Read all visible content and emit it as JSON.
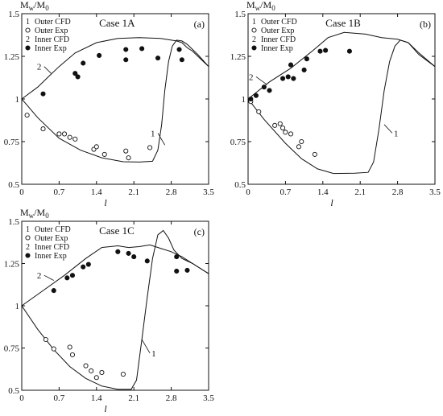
{
  "chart_data": [
    {
      "type": "line",
      "title": "Case 1A",
      "panel_tag": "(a)",
      "ylabel": "Mw/M0",
      "xlabel": "l",
      "xlim": [
        0,
        3.5
      ],
      "ylim": [
        0.5,
        1.5
      ],
      "xticks": [
        "0",
        "0.7",
        "1.4",
        "2.1",
        "2.8",
        "3.5"
      ],
      "yticks": [
        "0.5",
        "0.75",
        "1",
        "1.25",
        "1.5"
      ],
      "legend": [
        "Outer  CFD",
        "Outer  Exp",
        "Inner  CFD",
        "Inner  Exp"
      ],
      "legend_nums": [
        "1",
        "2"
      ],
      "curve_labels": [
        "1",
        "2"
      ],
      "series": [
        {
          "name": "Outer CFD",
          "kind": "line",
          "x": [
            0,
            0.3,
            0.7,
            1.1,
            1.5,
            1.9,
            2.2,
            2.45,
            2.55,
            2.62,
            2.68,
            2.75,
            2.82,
            2.9,
            3.0,
            3.1,
            3.2,
            3.3,
            3.5
          ],
          "y": [
            1.0,
            0.89,
            0.77,
            0.7,
            0.655,
            0.632,
            0.63,
            0.635,
            0.7,
            0.85,
            1.05,
            1.22,
            1.31,
            1.345,
            1.34,
            1.32,
            1.29,
            1.26,
            1.19
          ]
        },
        {
          "name": "Outer Exp",
          "kind": "open",
          "x": [
            0.1,
            0.4,
            0.7,
            0.8,
            0.9,
            1.0,
            1.35,
            1.4,
            1.55,
            1.95,
            2.0,
            2.4
          ],
          "y": [
            0.905,
            0.825,
            0.795,
            0.795,
            0.775,
            0.765,
            0.705,
            0.72,
            0.675,
            0.695,
            0.655,
            0.715
          ]
        },
        {
          "name": "Inner CFD",
          "kind": "line",
          "x": [
            0,
            0.3,
            0.5,
            0.7,
            1.0,
            1.4,
            1.8,
            2.2,
            2.6,
            2.9,
            3.0,
            3.1,
            3.2,
            3.3,
            3.5
          ],
          "y": [
            1.0,
            1.07,
            1.13,
            1.19,
            1.27,
            1.33,
            1.355,
            1.36,
            1.355,
            1.34,
            1.33,
            1.3,
            1.28,
            1.25,
            1.19
          ]
        },
        {
          "name": "Inner Exp",
          "kind": "filled",
          "x": [
            0.4,
            1.0,
            1.05,
            1.15,
            1.45,
            1.95,
            1.95,
            2.25,
            2.55,
            2.95,
            3.0
          ],
          "y": [
            1.03,
            1.15,
            1.13,
            1.21,
            1.255,
            1.29,
            1.23,
            1.295,
            1.24,
            1.29,
            1.23
          ]
        }
      ]
    },
    {
      "type": "line",
      "title": "Case 1B",
      "panel_tag": "(b)",
      "ylabel": "Mw/M0",
      "xlabel": "l",
      "xlim": [
        0,
        3.5
      ],
      "ylim": [
        0.5,
        1.5
      ],
      "xticks": [
        "0",
        "0.7",
        "1.4",
        "2.1",
        "2.8",
        "3.5"
      ],
      "yticks": [
        "0.5",
        "0.75",
        "1",
        "1.25",
        "1.5"
      ],
      "legend": [
        "Outer  CFD",
        "Outer  Exp",
        "Inner  CFD",
        "Inner  Exp"
      ],
      "legend_nums": [
        "1",
        "2"
      ],
      "curve_labels": [
        "1",
        "2"
      ],
      "series": [
        {
          "name": "Outer CFD",
          "kind": "line",
          "x": [
            0,
            0.3,
            0.7,
            1.0,
            1.3,
            1.6,
            2.0,
            2.25,
            2.35,
            2.45,
            2.55,
            2.65,
            2.75,
            2.85,
            3.0,
            3.2,
            3.5
          ],
          "y": [
            1.0,
            0.88,
            0.74,
            0.65,
            0.59,
            0.563,
            0.565,
            0.57,
            0.63,
            0.82,
            1.05,
            1.22,
            1.31,
            1.345,
            1.33,
            1.26,
            1.19
          ]
        },
        {
          "name": "Outer Exp",
          "kind": "open",
          "x": [
            0.05,
            0.2,
            0.5,
            0.6,
            0.65,
            0.7,
            0.8,
            0.95,
            1.0,
            1.25
          ],
          "y": [
            0.985,
            0.925,
            0.845,
            0.855,
            0.83,
            0.805,
            0.795,
            0.72,
            0.75,
            0.675
          ]
        },
        {
          "name": "Inner CFD",
          "kind": "line",
          "x": [
            0,
            0.4,
            0.8,
            1.2,
            1.5,
            1.8,
            2.2,
            2.5,
            2.8,
            3.0,
            3.2,
            3.5
          ],
          "y": [
            1.0,
            1.1,
            1.18,
            1.28,
            1.36,
            1.39,
            1.38,
            1.36,
            1.35,
            1.33,
            1.27,
            1.19
          ]
        },
        {
          "name": "Inner Exp",
          "kind": "filled",
          "x": [
            0.05,
            0.15,
            0.3,
            0.4,
            0.65,
            0.75,
            0.85,
            0.8,
            1.05,
            1.1,
            1.35,
            1.45,
            1.9
          ],
          "y": [
            1.0,
            1.02,
            1.07,
            1.05,
            1.12,
            1.13,
            1.12,
            1.2,
            1.17,
            1.235,
            1.28,
            1.285,
            1.28
          ]
        }
      ]
    },
    {
      "type": "line",
      "title": "Case 1C",
      "panel_tag": "(c)",
      "ylabel": "Mw/M0",
      "xlabel": "l",
      "xlim": [
        0,
        3.5
      ],
      "ylim": [
        0.5,
        1.5
      ],
      "xticks": [
        "0",
        "0.7",
        "1.4",
        "2.1",
        "2.8",
        "3.5"
      ],
      "yticks": [
        "0.5",
        "0.75",
        "1",
        "1.25",
        "1.5"
      ],
      "legend": [
        "Outer  CFD",
        "Outer  Exp",
        "Inner  CFD",
        "Inner  Exp"
      ],
      "legend_nums": [
        "1",
        "2"
      ],
      "curve_labels": [
        "1",
        "2"
      ],
      "series": [
        {
          "name": "Outer CFD",
          "kind": "line",
          "x": [
            0,
            0.3,
            0.6,
            0.9,
            1.2,
            1.5,
            1.8,
            2.05,
            2.15,
            2.25,
            2.35,
            2.45,
            2.55,
            2.65,
            2.75,
            2.85,
            3.0,
            3.2,
            3.5
          ],
          "y": [
            1.0,
            0.86,
            0.74,
            0.64,
            0.57,
            0.525,
            0.505,
            0.505,
            0.56,
            0.8,
            1.05,
            1.28,
            1.42,
            1.445,
            1.4,
            1.33,
            1.28,
            1.25,
            1.19
          ]
        },
        {
          "name": "Outer Exp",
          "kind": "open",
          "x": [
            0.45,
            0.6,
            0.9,
            0.95,
            1.2,
            1.3,
            1.4,
            1.5,
            1.9
          ],
          "y": [
            0.8,
            0.745,
            0.755,
            0.71,
            0.645,
            0.615,
            0.575,
            0.605,
            0.595
          ]
        },
        {
          "name": "Inner CFD",
          "kind": "line",
          "x": [
            0,
            0.4,
            0.8,
            1.2,
            1.5,
            1.8,
            2.0,
            2.2,
            2.4,
            2.6,
            2.8,
            3.0,
            3.2,
            3.5
          ],
          "y": [
            1.0,
            1.09,
            1.18,
            1.28,
            1.345,
            1.355,
            1.345,
            1.35,
            1.36,
            1.34,
            1.32,
            1.29,
            1.25,
            1.19
          ]
        },
        {
          "name": "Inner Exp",
          "kind": "filled",
          "x": [
            0.6,
            0.85,
            0.95,
            1.15,
            1.25,
            1.8,
            2.0,
            2.1,
            2.35,
            2.9,
            2.9,
            3.1
          ],
          "y": [
            1.09,
            1.165,
            1.18,
            1.23,
            1.245,
            1.32,
            1.31,
            1.29,
            1.265,
            1.29,
            1.205,
            1.21
          ]
        }
      ]
    }
  ]
}
